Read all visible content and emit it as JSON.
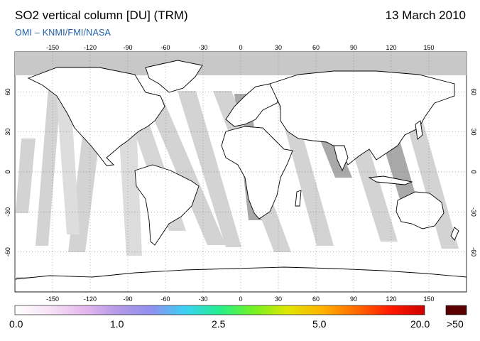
{
  "header": {
    "title": "SO2 vertical column [DU] (TRM)",
    "date": "13 March 2010",
    "credit": "OMI  –  KNMI/FMI/NASA"
  },
  "map": {
    "projection": "equirectangular",
    "lon_ticks": [
      "-150",
      "-120",
      "-90",
      "-60",
      "-30",
      "0",
      "30",
      "60",
      "90",
      "120",
      "150"
    ],
    "lat_ticks": [
      "60",
      "30",
      "0",
      "-30",
      "-60"
    ],
    "lon_range": [
      -180,
      180
    ],
    "lat_range": [
      -90,
      90
    ],
    "colors": {
      "ocean": "#ffffff",
      "no_data_polar": "#c8c8c8",
      "orbit_gap_light": "#d3d3d3",
      "orbit_gap_dark": "#a9a9a9",
      "coastline": "#000000",
      "grid": "#7f7f7f"
    }
  },
  "legend": {
    "labels": [
      "0.0",
      "1.0",
      "2.5",
      "5.0",
      "20.0",
      ">50"
    ],
    "overflow_color": "#5a0000",
    "gradient_colors": [
      "#ffffff",
      "#f6e3f6",
      "#e5b9ee",
      "#b59ae6",
      "#8f8ff0",
      "#3ad1f3",
      "#24ef8c",
      "#74f221",
      "#dfe600",
      "#ffb200",
      "#ff6a00",
      "#ff1a00",
      "#cc0000"
    ]
  }
}
